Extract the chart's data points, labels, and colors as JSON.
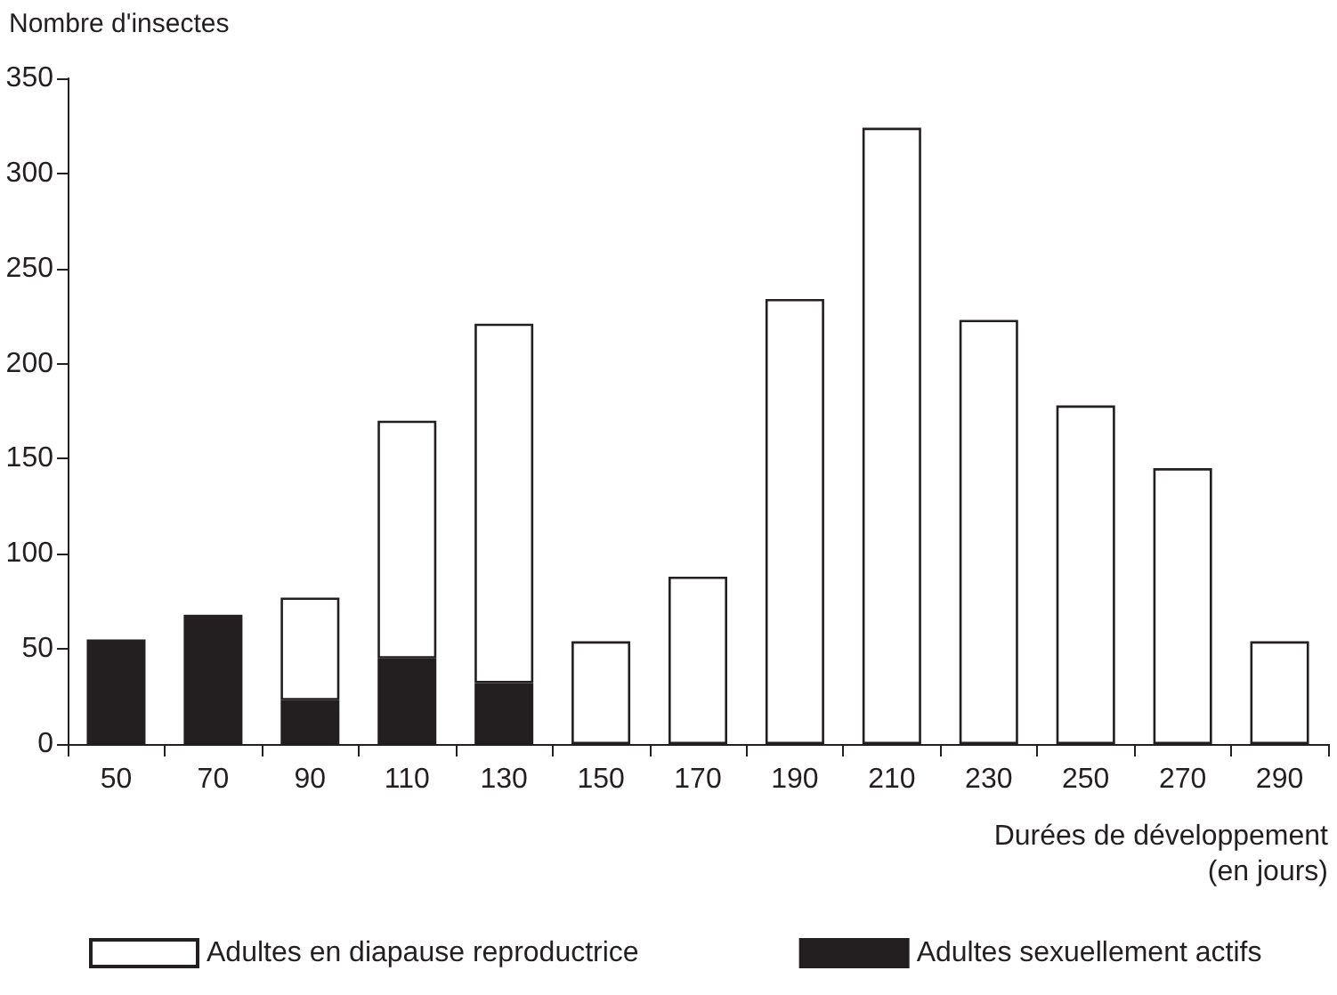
{
  "chart_data": {
    "type": "bar",
    "ylabel": "Nombre d'insectes",
    "xlabel": "Durées de développement\n(en jours)",
    "categories": [
      "50",
      "70",
      "90",
      "110",
      "130",
      "150",
      "170",
      "190",
      "210",
      "230",
      "250",
      "270",
      "290"
    ],
    "series": [
      {
        "name": "Adultes sexuellement actifs",
        "color": "#231f20",
        "values": [
          55,
          68,
          23,
          45,
          32,
          null,
          null,
          null,
          null,
          null,
          null,
          null,
          null
        ]
      },
      {
        "name": "Adultes en diapause reproductrice",
        "color": "#ffffff",
        "values": [
          null,
          null,
          54,
          125,
          189,
          54,
          88,
          234,
          324,
          223,
          178,
          145,
          54
        ]
      }
    ],
    "stacked": true,
    "ylim": [
      0,
      350
    ],
    "yticks": [
      0,
      50,
      100,
      150,
      200,
      250,
      300,
      350
    ],
    "grid": false,
    "legend": "bottom"
  }
}
